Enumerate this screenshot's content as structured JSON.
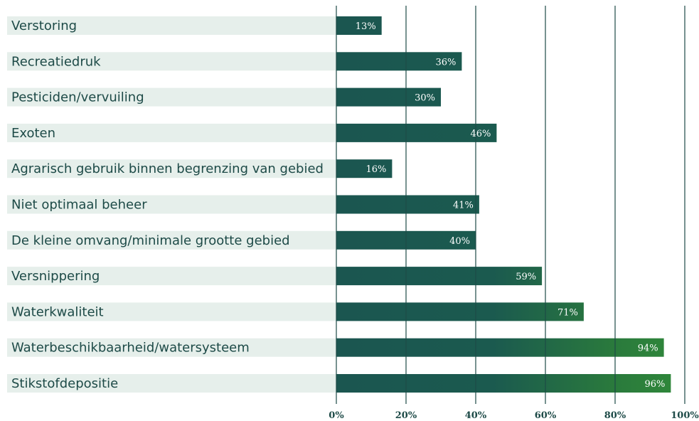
{
  "chart_data": {
    "type": "bar",
    "orientation": "horizontal",
    "categories": [
      "Verstoring",
      "Recreatiedruk",
      "Pesticiden/vervuiling",
      "Exoten",
      "Agrarisch gebruik binnen begrenzing van gebied",
      "Niet optimaal beheer",
      "De kleine omvang/minimale grootte gebied",
      "Versnippering",
      "Waterkwaliteit",
      "Waterbeschikbaarheid/watersysteem",
      "Stikstofdepositie"
    ],
    "values": [
      13,
      36,
      30,
      46,
      16,
      41,
      40,
      59,
      71,
      94,
      96
    ],
    "value_labels": [
      "13%",
      "36%",
      "30%",
      "46%",
      "16%",
      "41%",
      "40%",
      "59%",
      "71%",
      "94%",
      "96%"
    ],
    "x_ticks": [
      "0%",
      "20%",
      "40%",
      "60%",
      "80%",
      "100%"
    ],
    "xlim": [
      0,
      100
    ],
    "grid": true,
    "colors": {
      "bar_dark": "#1b5650",
      "bar_light": "#2f8a3a",
      "label_band": "#e6efeb",
      "gridline": "#1d4a47",
      "text": "#1d4a47"
    }
  }
}
